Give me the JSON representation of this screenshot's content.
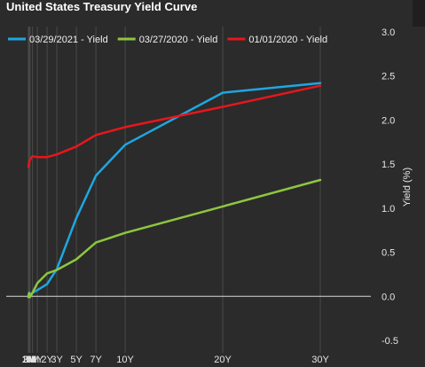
{
  "chart_data": {
    "type": "line",
    "title": "United States Treasury Yield Curve",
    "xlabel": "",
    "ylabel": "Yield (%)",
    "categories": [
      "1M",
      "2M",
      "3M",
      "6M",
      "1Y",
      "2Y",
      "3Y",
      "5Y",
      "7Y",
      "10Y",
      "20Y",
      "30Y"
    ],
    "maturity_years": [
      0.0833,
      0.1667,
      0.25,
      0.5,
      1,
      2,
      3,
      5,
      7,
      10,
      20,
      30
    ],
    "ylim": [
      -0.5,
      3.0
    ],
    "yticks": [
      -0.5,
      0.0,
      0.5,
      1.0,
      1.5,
      2.0,
      2.5,
      3.0
    ],
    "ytick_labels": [
      "-0.5",
      "0.0",
      "0.5",
      "1.0",
      "1.5",
      "2.0",
      "2.5",
      "3.0"
    ],
    "grid": "vertical",
    "legend_position": "top",
    "series": [
      {
        "name": "03/29/2021 - Yield",
        "color": "#1ea7e1",
        "values": [
          0.02,
          0.03,
          0.02,
          0.04,
          0.07,
          0.14,
          0.31,
          0.89,
          1.37,
          1.72,
          2.31,
          2.42
        ]
      },
      {
        "name": "03/27/2020 - Yield",
        "color": "#8dc63f",
        "values": [
          -0.01,
          0.04,
          -0.01,
          0.04,
          0.15,
          0.26,
          0.3,
          0.42,
          0.61,
          0.72,
          1.02,
          1.32
        ]
      },
      {
        "name": "01/01/2020 - Yield",
        "color": "#e8161b",
        "values": [
          1.47,
          1.52,
          1.55,
          1.59,
          1.58,
          1.58,
          1.61,
          1.7,
          1.83,
          1.92,
          2.15,
          2.39
        ]
      }
    ]
  }
}
